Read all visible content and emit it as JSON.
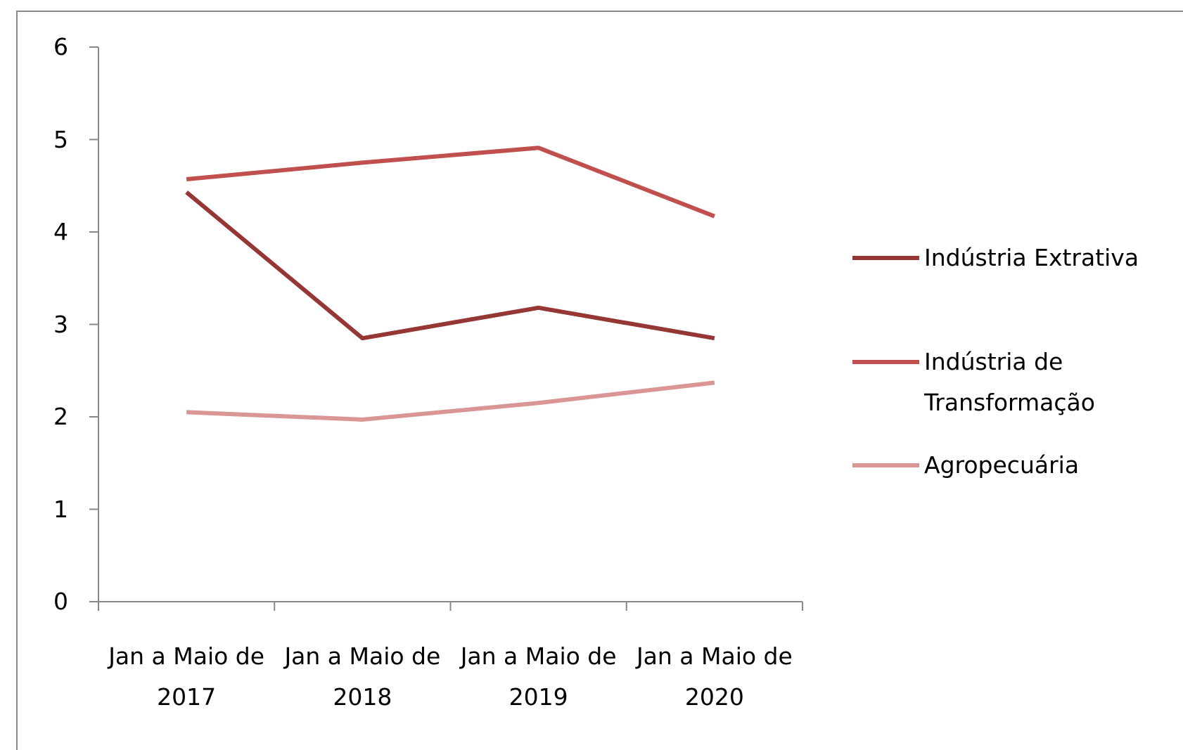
{
  "chart_data": {
    "type": "line",
    "categories": [
      "Jan a Maio de 2017",
      "Jan a Maio de 2018",
      "Jan a Maio de 2019",
      "Jan a Maio de 2020"
    ],
    "series": [
      {
        "name": "Indústria Extrativa",
        "color": "#953735",
        "values": [
          4.43,
          2.85,
          3.18,
          2.85
        ]
      },
      {
        "name": "Indústria de Transformação",
        "color": "#c0504d",
        "values": [
          4.57,
          4.75,
          4.91,
          4.17
        ]
      },
      {
        "name": "Agropecuária",
        "color": "#d99694",
        "values": [
          2.05,
          1.97,
          2.15,
          2.37
        ]
      }
    ],
    "ylim": [
      0,
      6
    ],
    "yticks": [
      0,
      1,
      2,
      3,
      4,
      5,
      6
    ],
    "grid": false,
    "legend": "right"
  }
}
